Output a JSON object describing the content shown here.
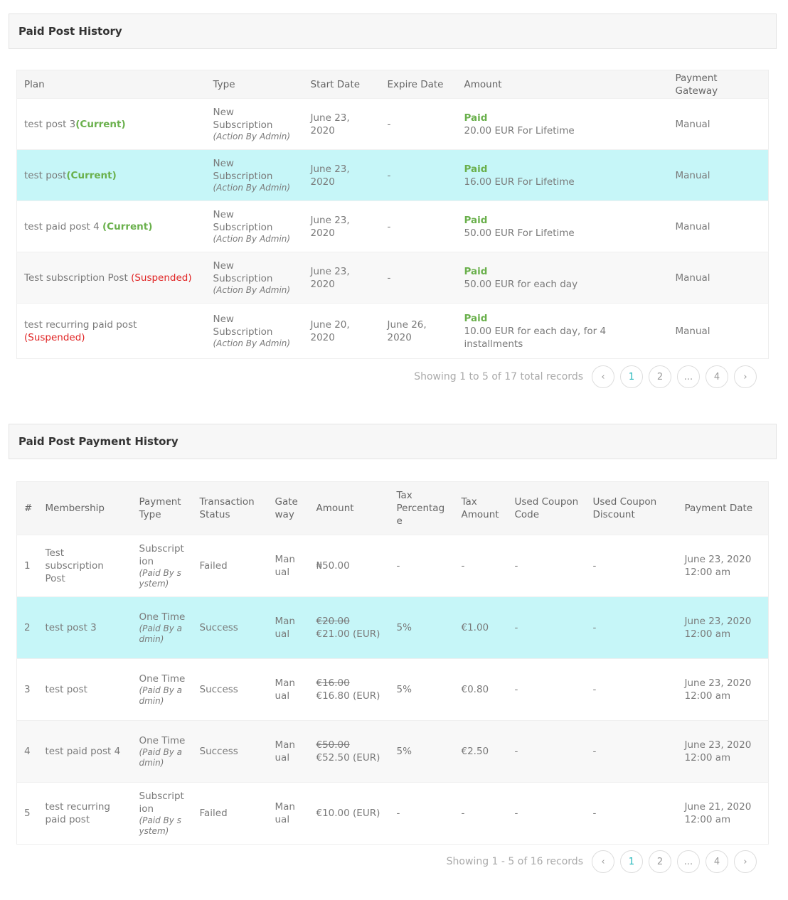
{
  "history": {
    "title": "Paid Post History",
    "columns": [
      "Plan",
      "Type",
      "Start Date",
      "Expire Date",
      "Amount",
      "Payment Gateway"
    ],
    "rows": [
      {
        "plan": "test post 3",
        "status": "(Current)",
        "status_kind": "current",
        "type": "New Subscription",
        "action": "(Action By Admin)",
        "start": "June 23, 2020",
        "expire": "-",
        "paid": "Paid",
        "amount": "20.00 EUR For Lifetime",
        "gateway": "Manual"
      },
      {
        "plan": "test post",
        "status": "(Current)",
        "status_kind": "current",
        "type": "New Subscription",
        "action": "(Action By Admin)",
        "start": "June 23, 2020",
        "expire": "-",
        "paid": "Paid",
        "amount": "16.00 EUR For Lifetime",
        "gateway": "Manual"
      },
      {
        "plan": "test paid post 4 ",
        "status": "(Current)",
        "status_kind": "current",
        "type": "New Subscription",
        "action": "(Action By Admin)",
        "start": "June 23, 2020",
        "expire": "-",
        "paid": "Paid",
        "amount": "50.00 EUR For Lifetime",
        "gateway": "Manual"
      },
      {
        "plan": "Test subscription Post ",
        "status": "(Suspended)",
        "status_kind": "suspended",
        "type": "New Subscription",
        "action": "(Action By Admin)",
        "start": "June 23, 2020",
        "expire": "-",
        "paid": "Paid",
        "amount": "50.00 EUR for each day",
        "gateway": "Manual"
      },
      {
        "plan": "test recurring paid post ",
        "status": "(Suspended)",
        "status_kind": "suspended",
        "type": "New Subscription",
        "action": "(Action By Admin)",
        "start": "June 20, 2020",
        "expire": "June 26, 2020",
        "paid": "Paid",
        "amount": "10.00 EUR for each day, for 4 installments",
        "gateway": "Manual"
      }
    ],
    "pagination": {
      "info": "Showing 1 to 5 of 17 total records",
      "prev": "‹",
      "pages": [
        "1",
        "2",
        "...",
        "4"
      ],
      "next": "›",
      "current": "1"
    }
  },
  "payments": {
    "title": "Paid Post Payment History",
    "columns": [
      "#",
      "Membership",
      "Payment Type",
      "Transaction Status",
      "Gate way",
      "Amount",
      "Tax Percentag e",
      "Tax Amount",
      "Used Coupon Code",
      "Used Coupon Discount",
      "Payment Date"
    ],
    "rows": [
      {
        "n": "1",
        "membership": "Test subscription Post",
        "ptype": "Subscript ion",
        "paid_by": "(Paid By system)",
        "status": "Failed",
        "gateway": "Man ual",
        "old_amount": "",
        "amount": "₦50.00",
        "tax_pct": "-",
        "tax_amt": "-",
        "coupon": "-",
        "discount": "-",
        "date": "June 23, 2020 12:00 am"
      },
      {
        "n": "2",
        "membership": "test post 3",
        "ptype": "One Time",
        "paid_by": "(Paid By admin)",
        "status": "Success",
        "gateway": "Man ual",
        "old_amount": "€20.00",
        "amount": "€21.00 (EUR)",
        "tax_pct": "5%",
        "tax_amt": "€1.00",
        "coupon": "-",
        "discount": "-",
        "date": "June 23, 2020 12:00 am"
      },
      {
        "n": "3",
        "membership": "test post",
        "ptype": "One Time",
        "paid_by": "(Paid By admin)",
        "status": "Success",
        "gateway": "Man ual",
        "old_amount": "€16.00",
        "amount": "€16.80 (EUR)",
        "tax_pct": "5%",
        "tax_amt": "€0.80",
        "coupon": "-",
        "discount": "-",
        "date": "June 23, 2020 12:00 am"
      },
      {
        "n": "4",
        "membership": "test paid post 4",
        "ptype": "One Time",
        "paid_by": "(Paid By admin)",
        "status": "Success",
        "gateway": "Man ual",
        "old_amount": "€50.00",
        "amount": "€52.50 (EUR)",
        "tax_pct": "5%",
        "tax_amt": "€2.50",
        "coupon": "-",
        "discount": "-",
        "date": "June 23, 2020 12:00 am"
      },
      {
        "n": "5",
        "membership": "test recurring paid post",
        "ptype": "Subscript ion",
        "paid_by": "(Paid By system)",
        "status": "Failed",
        "gateway": "Man ual",
        "old_amount": "",
        "amount": "€10.00 (EUR)",
        "tax_pct": "-",
        "tax_amt": "-",
        "coupon": "-",
        "discount": "-",
        "date": "June 21, 2020 12:00 am"
      }
    ],
    "pagination": {
      "info": "Showing 1 - 5 of 16 records",
      "prev": "‹",
      "pages": [
        "1",
        "2",
        "...",
        "4"
      ],
      "next": "›",
      "current": "1"
    }
  },
  "colors": {
    "current": "#6ab04c",
    "suspended": "#e02424",
    "highlight": "#c6f6f8",
    "accent": "#1fb5b9"
  }
}
